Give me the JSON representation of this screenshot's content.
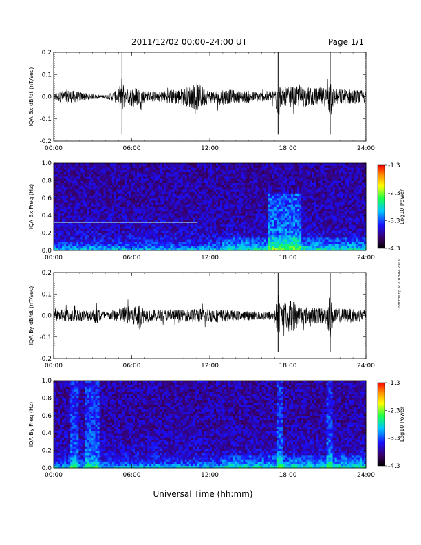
{
  "header": {
    "title": "2011/12/02  00:00–24:00 UT",
    "page": "Page 1/1"
  },
  "footer": {
    "xlabel": "Universal Time (hh:mm)",
    "side_note": "not the tip at 2013-04 2013"
  },
  "colors": {
    "background": "#ffffff",
    "trace": "#000000",
    "colormap": [
      "#000000",
      "#3a0060",
      "#1a10ff",
      "#00c8ff",
      "#1aff4a",
      "#ffff00",
      "#ff9000",
      "#ff0000"
    ]
  },
  "chart_data": [
    {
      "type": "line",
      "ylabel": "IQA Bx dB/dt (nT/sec)",
      "ylim": [
        -0.2,
        0.2
      ],
      "yticks": [
        "0.2",
        "0.1",
        "0.0",
        "-0.1",
        "-0.2"
      ],
      "xlim": [
        0,
        24
      ],
      "xticks": [
        "00:00",
        "06:00",
        "12:00",
        "18:00",
        "24:00"
      ],
      "series": [
        {
          "x": [
            0,
            1,
            2,
            3,
            4,
            5,
            5.25,
            5.5,
            6,
            6.5,
            7,
            8,
            9,
            10,
            10.5,
            11,
            12,
            13,
            14,
            15,
            16,
            17,
            17.25,
            17.5,
            18,
            19,
            20,
            21,
            21.25,
            21.5,
            22,
            23,
            24
          ],
          "amplitude": [
            0.03,
            0.06,
            0.04,
            0.02,
            0.015,
            0.06,
            0.17,
            0.05,
            0.08,
            0.08,
            0.05,
            0.04,
            0.06,
            0.07,
            0.09,
            0.12,
            0.05,
            0.07,
            0.05,
            0.05,
            0.04,
            0.06,
            0.2,
            0.07,
            0.08,
            0.09,
            0.07,
            0.08,
            0.2,
            0.08,
            0.07,
            0.06,
            0.05
          ]
        }
      ]
    },
    {
      "type": "heatmap",
      "ylabel": "IQA Bx Freq (Hz)",
      "ylim": [
        0,
        1.0
      ],
      "yticks": [
        "1.0",
        "0.8",
        "0.6",
        "0.4",
        "0.2",
        "0.0"
      ],
      "xlim": [
        0,
        24
      ],
      "xticks": [
        "00:00",
        "06:00",
        "12:00",
        "18:00",
        "24:00"
      ],
      "colorbar": {
        "label": "Log10 Power",
        "ticks": [
          "-1.3",
          "-2.3",
          "-3.3",
          "-4.3"
        ],
        "range": [
          -4.3,
          -1.3
        ]
      },
      "features": {
        "line_hz": 0.32,
        "enhanced_band_hours": [
          16.5,
          19.0
        ]
      }
    },
    {
      "type": "line",
      "ylabel": "IQA By dB/dt (nT/sec)",
      "ylim": [
        -0.2,
        0.2
      ],
      "yticks": [
        "0.2",
        "0.1",
        "0.0",
        "-0.1",
        "-0.2"
      ],
      "xlim": [
        0,
        24
      ],
      "xticks": [
        "00:00",
        "06:00",
        "12:00",
        "18:00",
        "24:00"
      ],
      "series": [
        {
          "x": [
            0,
            1,
            2,
            3,
            3.25,
            4,
            5,
            6,
            6.5,
            7,
            8,
            9,
            10,
            11,
            12,
            13,
            14,
            15,
            16,
            17,
            17.25,
            17.5,
            18,
            18.5,
            19,
            20,
            21,
            21.25,
            21.5,
            22,
            23,
            24
          ],
          "amplitude": [
            0.04,
            0.06,
            0.05,
            0.05,
            0.08,
            0.03,
            0.06,
            0.09,
            0.12,
            0.06,
            0.05,
            0.05,
            0.05,
            0.06,
            0.06,
            0.05,
            0.04,
            0.04,
            0.04,
            0.04,
            0.2,
            0.08,
            0.14,
            0.13,
            0.08,
            0.07,
            0.08,
            0.2,
            0.07,
            0.06,
            0.06,
            0.05
          ]
        }
      ]
    },
    {
      "type": "heatmap",
      "ylabel": "IQA By Freq (Hz)",
      "ylim": [
        0,
        1.0
      ],
      "yticks": [
        "1.0",
        "0.8",
        "0.6",
        "0.4",
        "0.2",
        "0.0"
      ],
      "xlim": [
        0,
        24
      ],
      "xticks": [
        "00:00",
        "06:00",
        "12:00",
        "18:00",
        "24:00"
      ],
      "colorbar": {
        "label": "Log10 Power",
        "ticks": [
          "-1.3",
          "-2.3",
          "-3.3",
          "-4.3"
        ],
        "range": [
          -4.3,
          -1.3
        ]
      },
      "features": {
        "vertical_bursts_hours": [
          1.6,
          2.6,
          3.2,
          17.3,
          21.2
        ]
      }
    }
  ]
}
